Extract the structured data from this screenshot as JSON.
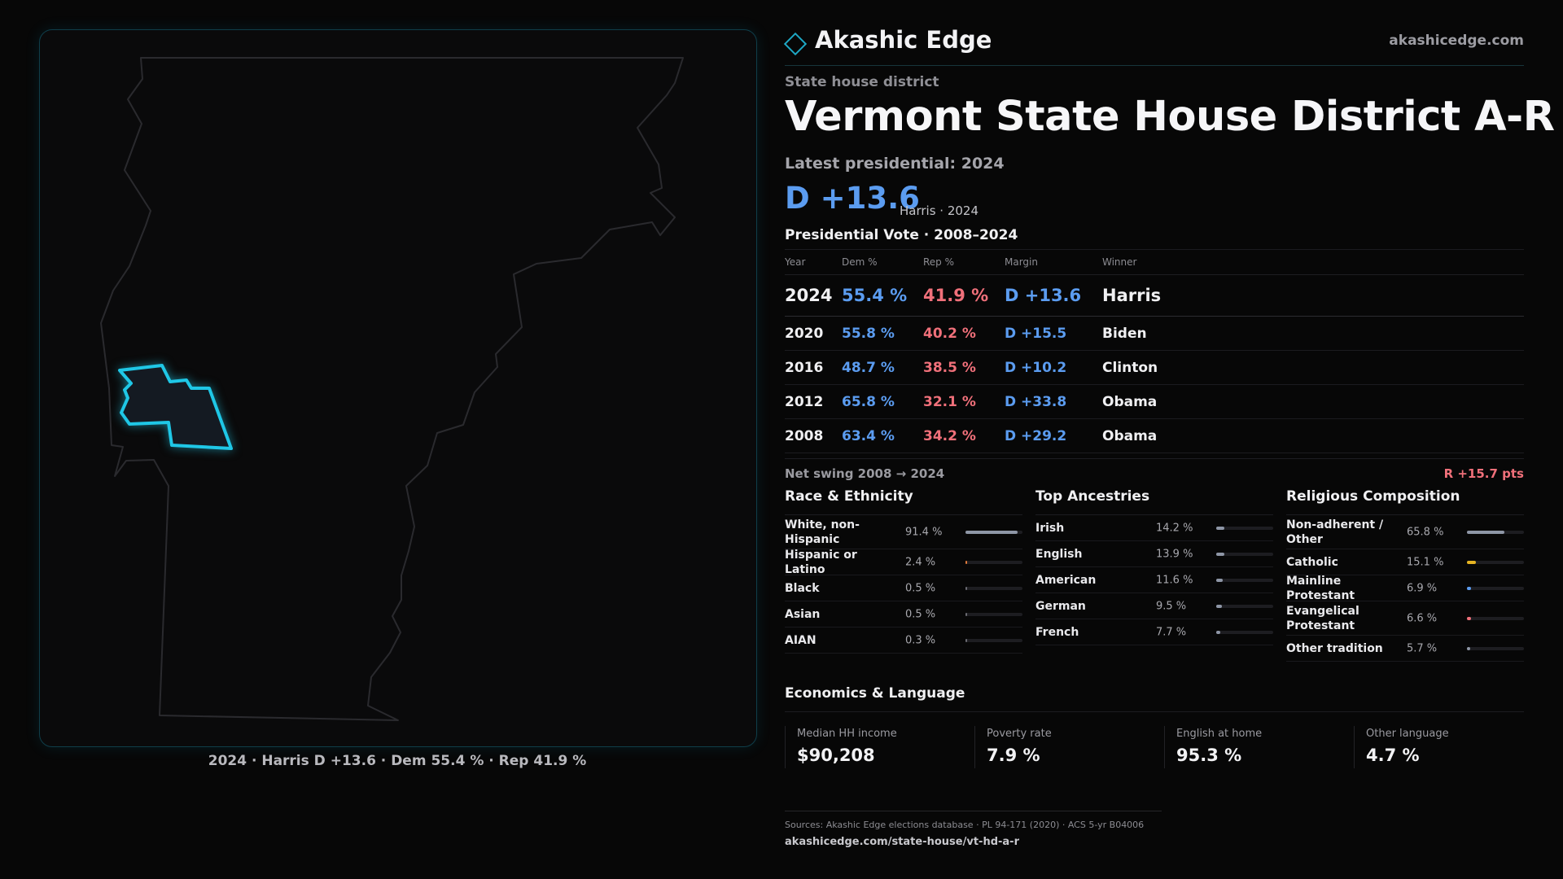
{
  "map": {
    "caption": "2024 · Harris D +13.6 · Dem 55.4 % · Rep 41.9 %",
    "state_outline_color": "#2a2a2e",
    "district_color": "#1fc7e6"
  },
  "brand": {
    "name": "Akashic Edge",
    "url": "akashicedge.com",
    "icon": "diamond-icon",
    "accent": "#1ea7c4"
  },
  "header": {
    "kicker": "State house district",
    "title": "Vermont State House District A-R",
    "latest_label": "Latest presidential: 2024",
    "margin": "D +13.6",
    "margin_sub": "Harris · 2024"
  },
  "presidential": {
    "title": "Presidential Vote · 2008–2024",
    "columns": [
      "Year",
      "Dem %",
      "Rep %",
      "Margin",
      "Winner"
    ],
    "rows": [
      {
        "year": "2024",
        "dem": "55.4 %",
        "rep": "41.9 %",
        "margin": "D +13.6",
        "winner": "Harris"
      },
      {
        "year": "2020",
        "dem": "55.8 %",
        "rep": "40.2 %",
        "margin": "D +15.5",
        "winner": "Biden"
      },
      {
        "year": "2016",
        "dem": "48.7 %",
        "rep": "38.5 %",
        "margin": "D +10.2",
        "winner": "Clinton"
      },
      {
        "year": "2012",
        "dem": "65.8 %",
        "rep": "32.1 %",
        "margin": "D +33.8",
        "winner": "Obama"
      },
      {
        "year": "2008",
        "dem": "63.4 %",
        "rep": "34.2 %",
        "margin": "D +29.2",
        "winner": "Obama"
      }
    ]
  },
  "swing": {
    "label": "Net swing 2008 → 2024",
    "value": "R +15.7 pts"
  },
  "race": {
    "title": "Race & Ethnicity",
    "items": [
      {
        "label": "White, non-Hispanic",
        "value": "91.4 %",
        "share": 91.4,
        "color": "#8e96a6"
      },
      {
        "label": "Hispanic or Latino",
        "value": "2.4 %",
        "share": 2.4,
        "color": "#e07a3a"
      },
      {
        "label": "Black",
        "value": "0.5 %",
        "share": 0.5,
        "color": "#6b6b72"
      },
      {
        "label": "Asian",
        "value": "0.5 %",
        "share": 0.5,
        "color": "#6b6b72"
      },
      {
        "label": "AIAN",
        "value": "0.3 %",
        "share": 0.3,
        "color": "#6b6b72"
      }
    ]
  },
  "ancestry": {
    "title": "Top Ancestries",
    "items": [
      {
        "label": "Irish",
        "value": "14.2 %",
        "share": 14.2,
        "color": "#8e96a6"
      },
      {
        "label": "English",
        "value": "13.9 %",
        "share": 13.9,
        "color": "#8e96a6"
      },
      {
        "label": "American",
        "value": "11.6 %",
        "share": 11.6,
        "color": "#8e96a6"
      },
      {
        "label": "German",
        "value": "9.5 %",
        "share": 9.5,
        "color": "#8e96a6"
      },
      {
        "label": "French",
        "value": "7.7 %",
        "share": 7.7,
        "color": "#8e96a6"
      }
    ]
  },
  "religion": {
    "title": "Religious Composition",
    "items": [
      {
        "label": "Non-adherent / Other",
        "value": "65.8 %",
        "share": 65.8,
        "color": "#8e96a6"
      },
      {
        "label": "Catholic",
        "value": "15.1 %",
        "share": 15.1,
        "color": "#e6b422"
      },
      {
        "label": "Mainline Protestant",
        "value": "6.9 %",
        "share": 6.9,
        "color": "#5b9cf0"
      },
      {
        "label": "Evangelical Protestant",
        "value": "6.6 %",
        "share": 6.6,
        "color": "#f0707a"
      },
      {
        "label": "Other tradition",
        "value": "5.7 %",
        "share": 5.7,
        "color": "#8e96a6"
      }
    ]
  },
  "economics": {
    "title": "Economics & Language",
    "cards": [
      {
        "label": "Median HH income",
        "value": "$90,208"
      },
      {
        "label": "Poverty rate",
        "value": "7.9 %"
      },
      {
        "label": "English at home",
        "value": "95.3 %"
      },
      {
        "label": "Other language",
        "value": "4.7 %"
      }
    ]
  },
  "footer": {
    "sources": "Sources: Akashic Edge elections database · PL 94-171 (2020) · ACS 5-yr B04006",
    "url": "akashicedge.com/state-house/vt-hd-a-r"
  }
}
